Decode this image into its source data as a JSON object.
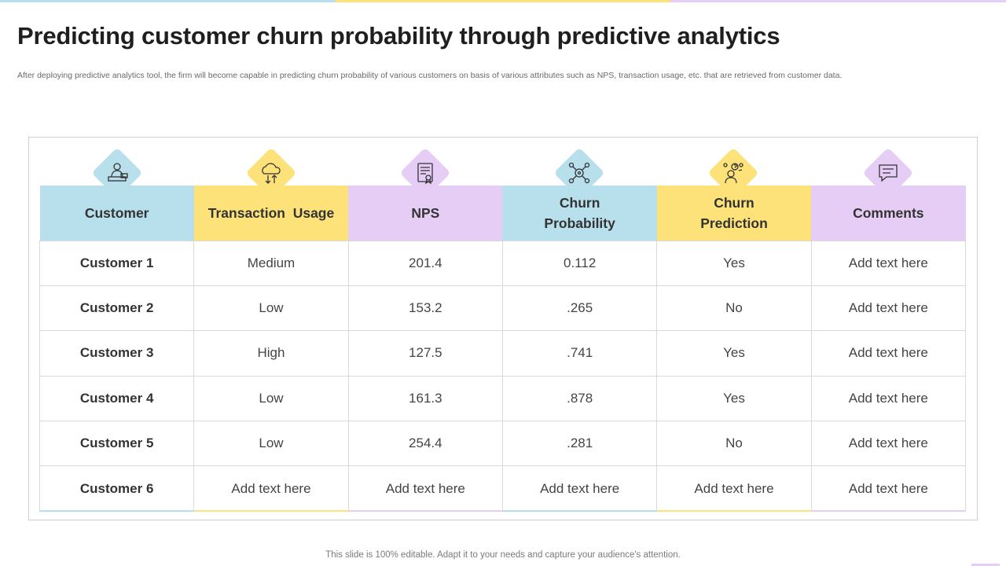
{
  "title": "Predicting customer churn probability through predictive analytics",
  "subtitle": "After deploying predictive analytics tool, the firm will become capable in predicting churn probability of various customers on basis of various attributes such as NPS, transaction usage, etc. that are retrieved from customer data.",
  "colors": {
    "blue": "#b7dfec",
    "yellow": "#fde27a",
    "purple": "#e6cdf6"
  },
  "icons": [
    "user-desk-icon",
    "cloud-transfer-icon",
    "certificate-icon",
    "network-gear-icon",
    "user-question-icon",
    "chat-message-icon"
  ],
  "table": {
    "headers": [
      "Customer",
      "Transaction  Usage",
      "NPS",
      "Churn Probability",
      "Churn Prediction",
      "Comments"
    ],
    "rows": [
      [
        "Customer 1",
        "Medium",
        "201.4",
        "0.112",
        "Yes",
        "Add text here"
      ],
      [
        "Customer 2",
        "Low",
        "153.2",
        ".265",
        "No",
        "Add text here"
      ],
      [
        "Customer 3",
        "High",
        "127.5",
        ".741",
        "Yes",
        "Add text here"
      ],
      [
        "Customer 4",
        "Low",
        "161.3",
        ".878",
        "Yes",
        "Add text here"
      ],
      [
        "Customer 5",
        "Low",
        "254.4",
        ".281",
        "No",
        "Add text here"
      ],
      [
        "Customer 6",
        "Add text here",
        "Add text here",
        "Add text here",
        "Add text here",
        "Add text here"
      ]
    ]
  },
  "footer": "This slide is 100% editable. Adapt it to your needs and capture your audience's attention."
}
